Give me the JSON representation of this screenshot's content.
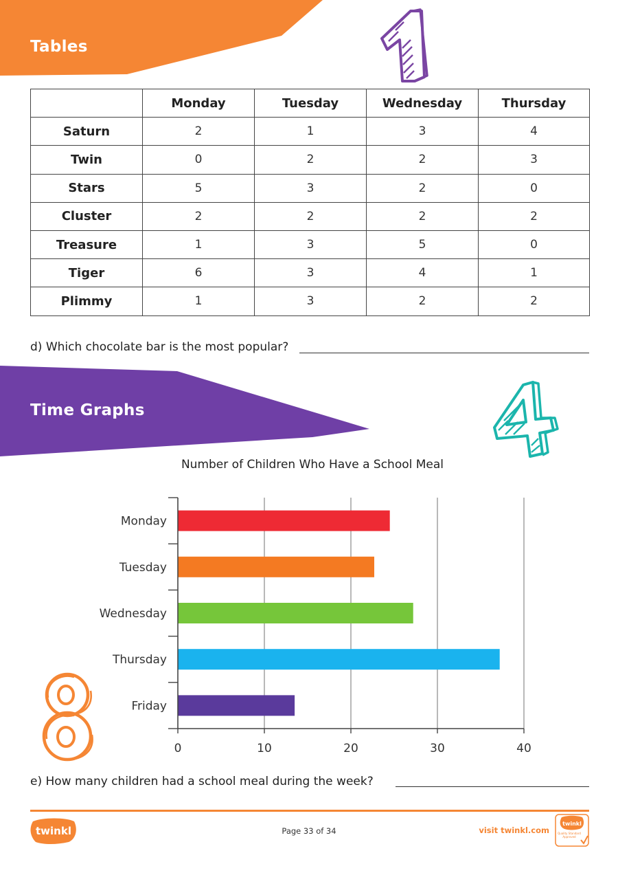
{
  "sections": {
    "tables_title": "Tables",
    "time_graphs_title": "Time Graphs"
  },
  "colors": {
    "orange": "#f58634",
    "purple": "#6f3fa6",
    "teal": "#1bb5ac",
    "violet": "#7a45a3"
  },
  "table": {
    "headers": [
      "",
      "Monday",
      "Tuesday",
      "Wednesday",
      "Thursday"
    ],
    "rows": [
      {
        "label": "Saturn",
        "values": [
          "2",
          "1",
          "3",
          "4"
        ]
      },
      {
        "label": "Twin",
        "values": [
          "0",
          "2",
          "2",
          "3"
        ]
      },
      {
        "label": "Stars",
        "values": [
          "5",
          "3",
          "2",
          "0"
        ]
      },
      {
        "label": "Cluster",
        "values": [
          "2",
          "2",
          "2",
          "2"
        ]
      },
      {
        "label": "Treasure",
        "values": [
          "1",
          "3",
          "5",
          "0"
        ]
      },
      {
        "label": "Tiger",
        "values": [
          "6",
          "3",
          "4",
          "1"
        ]
      },
      {
        "label": "Plimmy",
        "values": [
          "1",
          "3",
          "2",
          "2"
        ]
      }
    ]
  },
  "questions": {
    "d": "d) Which chocolate bar is the most popular?",
    "e": "e) How many children had a school meal during the week?"
  },
  "chart_data": {
    "type": "bar",
    "orientation": "horizontal",
    "title": "Number of Children Who Have a School Meal",
    "xlabel": "",
    "ylabel": "",
    "categories": [
      "Monday",
      "Tuesday",
      "Wednesday",
      "Thursday",
      "Friday"
    ],
    "values": [
      24.5,
      22.7,
      27.2,
      37.2,
      13.5
    ],
    "bar_colors": [
      "#ee2a34",
      "#f47a22",
      "#76c63a",
      "#1ab3ee",
      "#5a3a9c"
    ],
    "xlim": [
      0,
      40
    ],
    "xticks": [
      "0",
      "10",
      "20",
      "30",
      "40"
    ],
    "grid": true,
    "legend": "none"
  },
  "decorations": {
    "number_one": "number-1",
    "number_four": "number-4",
    "number_eight": "number-8"
  },
  "footer": {
    "logo_text": "twinkl",
    "page": "Page 33 of 34",
    "visit": "visit twinkl.com",
    "badge_brand": "twinkl",
    "badge_text": "Quality Standard Approved"
  }
}
